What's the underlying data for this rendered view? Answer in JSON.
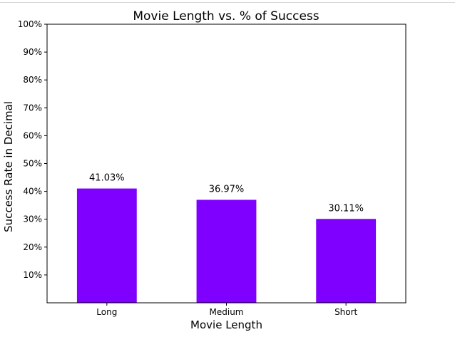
{
  "chart_data": {
    "type": "bar",
    "title": "Movie Length vs. % of Success",
    "xlabel": "Movie Length",
    "ylabel": "Success Rate in Decimal",
    "categories": [
      "Long",
      "Medium",
      "Short"
    ],
    "values": [
      0.4103,
      0.3697,
      0.3011
    ],
    "data_labels": [
      "41.03%",
      "36.97%",
      "30.11%"
    ],
    "ylim": [
      0,
      1
    ],
    "yticks": [
      0.1,
      0.2,
      0.3,
      0.4,
      0.5,
      0.6,
      0.7,
      0.8,
      0.9,
      1.0
    ],
    "ytick_labels": [
      "10%",
      "20%",
      "30%",
      "40%",
      "50%",
      "60%",
      "70%",
      "80%",
      "90%",
      "100%"
    ],
    "bar_color": "#7f00ff",
    "grid": false,
    "legend": "none"
  }
}
